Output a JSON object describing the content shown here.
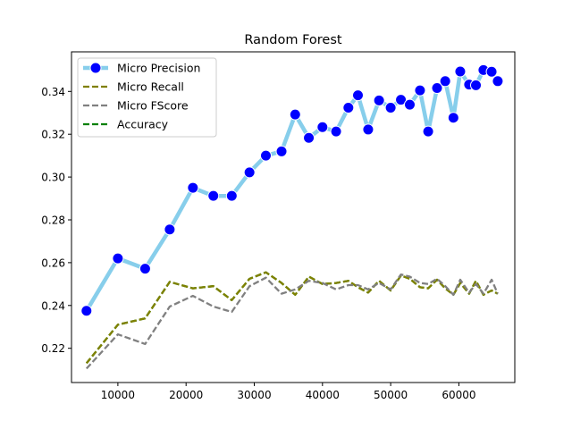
{
  "chart_data": {
    "type": "line",
    "title": "Random Forest",
    "xlabel": "",
    "ylabel": "",
    "xlim": [
      3200,
      68200
    ],
    "ylim": [
      0.204,
      0.3585
    ],
    "xticks": [
      10000,
      20000,
      30000,
      40000,
      50000,
      60000
    ],
    "yticks": [
      0.22,
      0.24,
      0.26,
      0.28,
      0.3,
      0.32,
      0.34
    ],
    "grid": false,
    "legend_position": "top-left",
    "series": [
      {
        "name": "Micro Precision",
        "color": "#87ceeb",
        "marker_color": "#0000ff",
        "style": "solid-thick-markers",
        "x": [
          5400,
          10000,
          14000,
          17600,
          21000,
          24000,
          26700,
          29300,
          31700,
          34000,
          36000,
          38000,
          40000,
          42000,
          43800,
          45200,
          46700,
          48300,
          50000,
          51500,
          52800,
          54300,
          55500,
          56800,
          58000,
          59200,
          60200,
          61500,
          62500,
          63600,
          64800,
          65700
        ],
        "y": [
          0.2375,
          0.262,
          0.2572,
          0.2755,
          0.295,
          0.2912,
          0.2912,
          0.3022,
          0.31,
          0.312,
          0.3292,
          0.3183,
          0.3233,
          0.3213,
          0.3324,
          0.3382,
          0.3222,
          0.3358,
          0.3324,
          0.3361,
          0.3338,
          0.3405,
          0.3213,
          0.3416,
          0.3448,
          0.3277,
          0.3493,
          0.3432,
          0.3429,
          0.35,
          0.3492,
          0.3448
        ]
      },
      {
        "name": "Micro Recall",
        "color": "#808000",
        "style": "dashed",
        "x": [
          5400,
          10000,
          14000,
          17600,
          21000,
          24000,
          26700,
          29300,
          31700,
          34000,
          36000,
          38000,
          40000,
          42000,
          43800,
          45200,
          46700,
          48300,
          50000,
          51500,
          52800,
          54300,
          55500,
          56800,
          58000,
          59200,
          60200,
          61500,
          62500,
          63600,
          64800,
          65700
        ],
        "y": [
          0.213,
          0.231,
          0.234,
          0.251,
          0.248,
          0.249,
          0.2425,
          0.2525,
          0.2555,
          0.2505,
          0.245,
          0.2535,
          0.25,
          0.2505,
          0.2515,
          0.2485,
          0.246,
          0.2515,
          0.247,
          0.254,
          0.2525,
          0.2485,
          0.248,
          0.252,
          0.248,
          0.245,
          0.2505,
          0.2455,
          0.2515,
          0.245,
          0.247,
          0.2455
        ]
      },
      {
        "name": "Micro FScore",
        "color": "#808080",
        "style": "dashed",
        "x": [
          5400,
          10000,
          14000,
          17600,
          21000,
          24000,
          26700,
          29300,
          31700,
          34000,
          36000,
          38000,
          40000,
          42000,
          43800,
          45200,
          46700,
          48300,
          50000,
          51500,
          52800,
          54300,
          55500,
          56800,
          58000,
          59200,
          60200,
          61500,
          62500,
          63600,
          64800,
          65700
        ],
        "y": [
          0.2105,
          0.2265,
          0.222,
          0.2395,
          0.2445,
          0.2395,
          0.237,
          0.249,
          0.253,
          0.2455,
          0.2475,
          0.2515,
          0.2505,
          0.2475,
          0.2495,
          0.2495,
          0.2475,
          0.2505,
          0.2475,
          0.2545,
          0.2535,
          0.2505,
          0.25,
          0.2525,
          0.249,
          0.245,
          0.252,
          0.246,
          0.25,
          0.2455,
          0.252,
          0.2455
        ]
      },
      {
        "name": "Accuracy",
        "color": "#008000",
        "style": "dashed",
        "x": [
          5400,
          10000,
          14000,
          17600,
          21000,
          24000,
          26700,
          29300,
          31700,
          34000,
          36000,
          38000,
          40000,
          42000,
          43800,
          45200,
          46700,
          48300,
          50000,
          51500,
          52800,
          54300,
          55500,
          56800,
          58000,
          59200,
          60200,
          61500,
          62500,
          63600,
          64800,
          65700
        ],
        "y": [
          0.213,
          0.231,
          0.234,
          0.251,
          0.248,
          0.249,
          0.2425,
          0.2525,
          0.2555,
          0.2505,
          0.245,
          0.2535,
          0.25,
          0.2505,
          0.2515,
          0.2485,
          0.246,
          0.2515,
          0.247,
          0.254,
          0.2525,
          0.2485,
          0.248,
          0.252,
          0.248,
          0.245,
          0.2505,
          0.2455,
          0.2515,
          0.245,
          0.247,
          0.2455
        ]
      }
    ]
  }
}
